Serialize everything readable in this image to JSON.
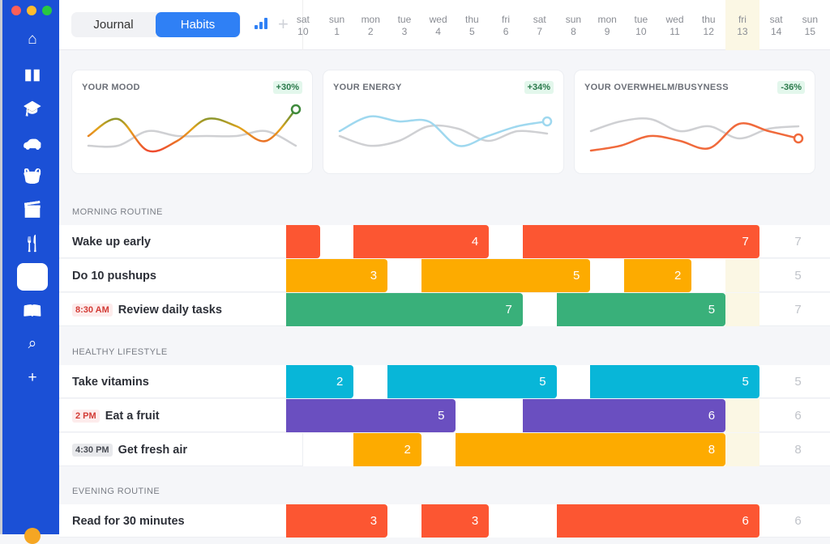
{
  "window": {
    "controls": [
      "#fd5f57",
      "#febc2e",
      "#28c840"
    ]
  },
  "sidebar": {
    "items": [
      {
        "name": "home",
        "icon": "⌂"
      },
      {
        "name": "work",
        "icon": "▮▮"
      },
      {
        "name": "education",
        "icon": "🎓"
      },
      {
        "name": "car",
        "icon": "🚗"
      },
      {
        "name": "shopping",
        "icon": "🧺"
      },
      {
        "name": "movies",
        "icon": "🎬"
      },
      {
        "name": "food",
        "icon": "🍴"
      },
      {
        "name": "dashboard",
        "icon": "▦",
        "active": true
      },
      {
        "name": "reading",
        "icon": "📖"
      },
      {
        "name": "search",
        "icon": "⌕"
      },
      {
        "name": "add",
        "icon": "+"
      }
    ]
  },
  "header": {
    "tabs": [
      "Journal",
      "Habits"
    ],
    "active_tab": "Habits",
    "accent": "#2f80f5",
    "days": [
      {
        "d": "sat",
        "n": "10"
      },
      {
        "d": "sun",
        "n": "1"
      },
      {
        "d": "mon",
        "n": "2"
      },
      {
        "d": "tue",
        "n": "3"
      },
      {
        "d": "wed",
        "n": "4"
      },
      {
        "d": "thu",
        "n": "5"
      },
      {
        "d": "fri",
        "n": "6"
      },
      {
        "d": "sat",
        "n": "7"
      },
      {
        "d": "sun",
        "n": "8"
      },
      {
        "d": "mon",
        "n": "9"
      },
      {
        "d": "tue",
        "n": "10"
      },
      {
        "d": "wed",
        "n": "11"
      },
      {
        "d": "thu",
        "n": "12"
      },
      {
        "d": "fri",
        "n": "13",
        "today": true
      },
      {
        "d": "sat",
        "n": "14"
      },
      {
        "d": "sun",
        "n": "15"
      }
    ]
  },
  "chart_data": [
    {
      "type": "line",
      "title": "YOUR MOOD",
      "badge": "+30%",
      "series": [
        {
          "role": "current",
          "values": [
            4,
            7.5,
            1,
            3,
            7.5,
            6,
            3,
            9.5
          ]
        },
        {
          "role": "previous",
          "values": [
            2,
            2,
            5,
            4,
            4,
            4,
            5,
            2
          ]
        }
      ]
    },
    {
      "type": "line",
      "title": "YOUR ENERGY",
      "badge": "+34%",
      "series": [
        {
          "role": "current",
          "color": "#9fd8ef",
          "values": [
            5,
            8,
            7,
            7,
            2,
            4,
            6,
            7
          ]
        },
        {
          "role": "previous",
          "values": [
            4,
            2,
            3,
            6,
            5.5,
            3,
            5,
            4.5
          ]
        }
      ]
    },
    {
      "type": "line",
      "title": "YOUR OVERWHELM/BUSYNESS",
      "badge": "-36%",
      "series": [
        {
          "role": "current",
          "color": "#f06a3c",
          "values": [
            1,
            2,
            4,
            3,
            1.5,
            6.5,
            5,
            3.5
          ]
        },
        {
          "role": "previous",
          "values": [
            5,
            7,
            7.5,
            5,
            6,
            3.5,
            5.5,
            6
          ]
        }
      ]
    }
  ],
  "sections": [
    {
      "title": "MORNING ROUTINE",
      "habits": [
        {
          "name": "Wake up early",
          "color": "#fc5632",
          "bars": [
            {
              "s": 0,
              "e": 1,
              "v": null
            },
            {
              "s": 2,
              "e": 6,
              "v": "4"
            },
            {
              "s": 7,
              "e": 14,
              "v": "7"
            }
          ],
          "total": "7"
        },
        {
          "name": "Do 10 pushups",
          "color": "#fdab00",
          "bars": [
            {
              "s": 0,
              "e": 3,
              "v": "3"
            },
            {
              "s": 4,
              "e": 9,
              "v": "5"
            },
            {
              "s": 10,
              "e": 12,
              "v": "2"
            }
          ],
          "total": "5"
        },
        {
          "name": "Review daily tasks",
          "time": "8:30 AM",
          "time_style": "red",
          "color": "#39b07a",
          "bars": [
            {
              "s": 0,
              "e": 7,
              "v": "7"
            },
            {
              "s": 8,
              "e": 13,
              "v": "5"
            }
          ],
          "total": "7"
        }
      ]
    },
    {
      "title": "HEALTHY LIFESTYLE",
      "habits": [
        {
          "name": "Take vitamins",
          "color": "#08b6d8",
          "bars": [
            {
              "s": 0,
              "e": 2,
              "v": "2"
            },
            {
              "s": 3,
              "e": 8,
              "v": "5"
            },
            {
              "s": 9,
              "e": 14,
              "v": "5"
            }
          ],
          "total": "5"
        },
        {
          "name": "Eat a fruit",
          "time": "2 PM",
          "time_style": "red",
          "color": "#6a4fc0",
          "bars": [
            {
              "s": 0,
              "e": 5,
              "v": "5"
            },
            {
              "s": 7,
              "e": 13,
              "v": "6"
            }
          ],
          "total": "6"
        },
        {
          "name": "Get fresh air",
          "time": "4:30 PM",
          "time_style": "gray",
          "color": "#fdab00",
          "bars": [
            {
              "s": 2,
              "e": 4,
              "v": "2"
            },
            {
              "s": 5,
              "e": 13,
              "v": "8"
            }
          ],
          "total": "8"
        }
      ]
    },
    {
      "title": "EVENING ROUTINE",
      "habits": [
        {
          "name": "Read for 30 minutes",
          "color": "#fc5632",
          "bars": [
            {
              "s": 0,
              "e": 3,
              "v": "3"
            },
            {
              "s": 4,
              "e": 6,
              "v": "3"
            },
            {
              "s": 8,
              "e": 14,
              "v": "6"
            }
          ],
          "total": "6"
        }
      ]
    }
  ]
}
